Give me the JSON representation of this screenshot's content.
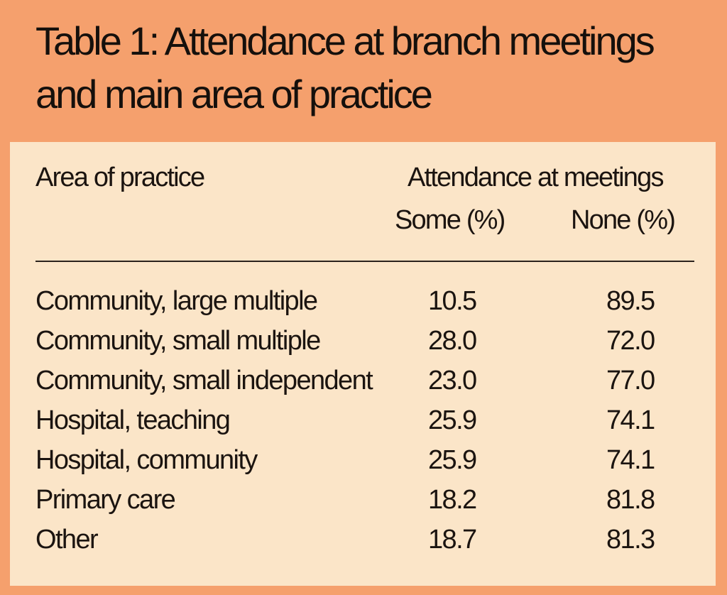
{
  "table": {
    "title": "Table 1: Attendance at branch meetings and main area of practice",
    "header_area": "Area of practice",
    "header_attendance": "Attendance at meetings",
    "header_some": "Some (%)",
    "header_none": "None (%)",
    "rows": [
      {
        "area": "Community, large multiple",
        "some": "10.5",
        "none": "89.5"
      },
      {
        "area": "Community, small multiple",
        "some": "28.0",
        "none": "72.0"
      },
      {
        "area": "Community, small independent",
        "some": "23.0",
        "none": "77.0"
      },
      {
        "area": "Hospital, teaching",
        "some": "25.9",
        "none": "74.1"
      },
      {
        "area": "Hospital, community",
        "some": "25.9",
        "none": "74.1"
      },
      {
        "area": "Primary care",
        "some": "18.2",
        "none": "81.8"
      },
      {
        "area": "Other",
        "some": "18.7",
        "none": "81.3"
      }
    ]
  },
  "colors": {
    "frame": "#f5a06d",
    "panel": "#fbe5c8",
    "text": "#1b1410"
  }
}
